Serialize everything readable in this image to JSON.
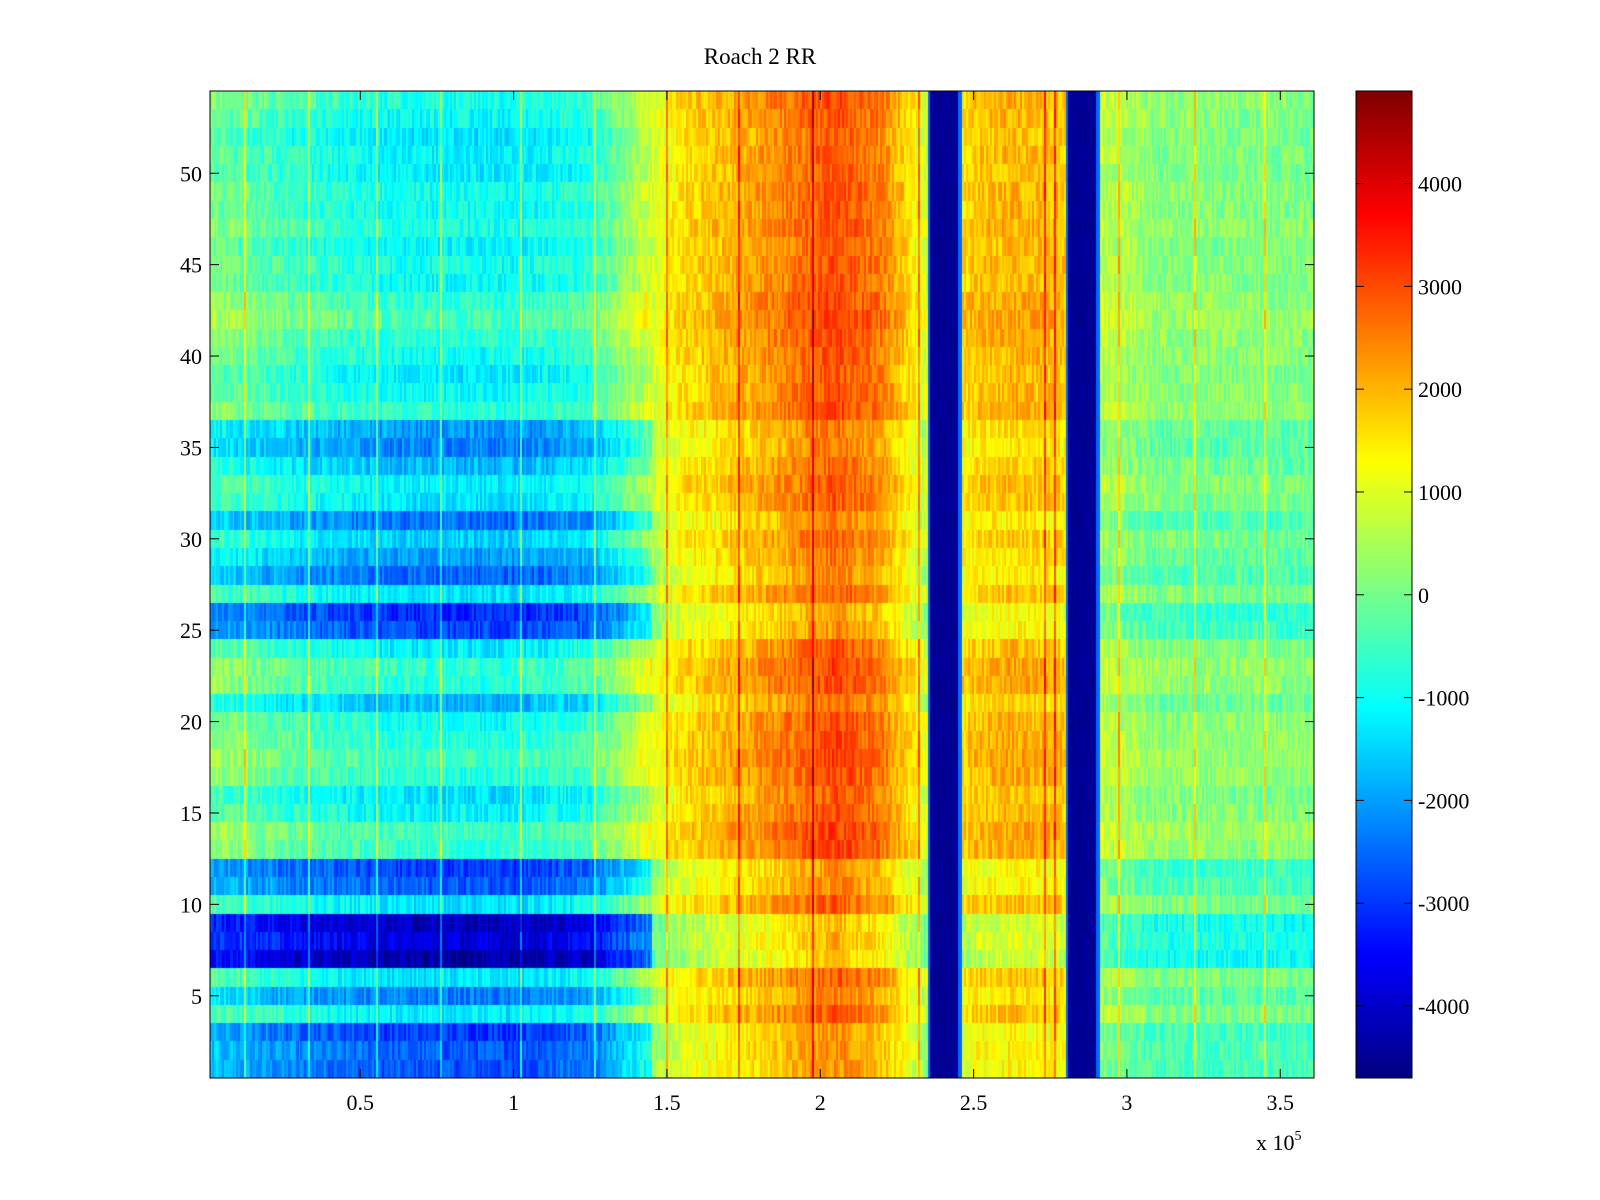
{
  "chart_data": {
    "type": "heatmap",
    "title": "Roach 2 RR",
    "xlabel": "",
    "ylabel": "",
    "x_scale_note": "x 10",
    "x_scale_exponent": "5",
    "xlim": [
      0.01,
      3.61
    ],
    "ylim": [
      0.5,
      54.5
    ],
    "clim": [
      -4700,
      4900
    ],
    "colormap": "jet",
    "x_ticks": [
      0.5,
      1,
      1.5,
      2,
      2.5,
      3,
      3.5
    ],
    "x_tick_labels": [
      "0.5",
      "1",
      "1.5",
      "2",
      "2.5",
      "3",
      "3.5"
    ],
    "y_ticks": [
      5,
      10,
      15,
      20,
      25,
      30,
      35,
      40,
      45,
      50
    ],
    "y_tick_labels": [
      "5",
      "10",
      "15",
      "20",
      "25",
      "30",
      "35",
      "40",
      "45",
      "50"
    ],
    "colorbar_ticks": [
      -4000,
      -3000,
      -2000,
      -1000,
      0,
      1000,
      2000,
      3000,
      4000
    ],
    "colorbar_tick_labels": [
      "-4000",
      "-3000",
      "-2000",
      "-1000",
      "0",
      "1000",
      "2000",
      "3000",
      "4000"
    ],
    "rows": 54,
    "x_profile": [
      {
        "x": 0.0,
        "v": 0
      },
      {
        "x": 0.3,
        "v": -600
      },
      {
        "x": 0.6,
        "v": -1000
      },
      {
        "x": 1.0,
        "v": -1100
      },
      {
        "x": 1.25,
        "v": -700
      },
      {
        "x": 1.4,
        "v": 500
      },
      {
        "x": 1.55,
        "v": 1600
      },
      {
        "x": 1.8,
        "v": 2200
      },
      {
        "x": 2.05,
        "v": 3000
      },
      {
        "x": 2.2,
        "v": 2500
      },
      {
        "x": 2.3,
        "v": 1500
      },
      {
        "x": 2.34,
        "v": 900
      },
      {
        "x": 2.5,
        "v": 1800
      },
      {
        "x": 2.62,
        "v": 2000
      },
      {
        "x": 2.78,
        "v": 1900
      },
      {
        "x": 2.92,
        "v": 700
      },
      {
        "x": 3.1,
        "v": 200
      },
      {
        "x": 3.61,
        "v": 100
      }
    ],
    "low_bands": [
      {
        "x_start": 2.35,
        "x_end": 2.46,
        "value": -4600
      },
      {
        "x_start": 2.8,
        "x_end": 2.91,
        "value": -4600
      }
    ],
    "row_offsets": {
      "1": -1700,
      "2": -1600,
      "3": -1900,
      "4": -200,
      "5": -1300,
      "6": -300,
      "7": -3300,
      "8": -2800,
      "9": -3100,
      "10": -300,
      "11": -1600,
      "12": -1900,
      "13": 400,
      "14": 500,
      "15": -100,
      "16": -300,
      "17": 300,
      "18": 500,
      "19": 300,
      "20": 100,
      "21": -700,
      "22": 300,
      "23": 400,
      "24": -200,
      "25": -1800,
      "26": -2100,
      "27": -300,
      "28": -1500,
      "29": -1000,
      "30": -500,
      "31": -1400,
      "32": -300,
      "33": -200,
      "34": -700,
      "35": -1200,
      "36": -1000,
      "37": 300,
      "38": 0,
      "39": -200,
      "40": 100,
      "41": 300,
      "42": 600,
      "43": 400,
      "44": 0,
      "45": 100,
      "46": -100,
      "47": 200,
      "48": 0,
      "49": 100,
      "50": -200,
      "51": -100,
      "52": -300,
      "53": 0,
      "54": 200
    },
    "vertical_lines_x": [
      0.12,
      0.33,
      0.55,
      0.76,
      1.02,
      1.26,
      1.5,
      1.73,
      1.97,
      2.32,
      2.73,
      2.76,
      2.97,
      3.22,
      3.45
    ]
  }
}
